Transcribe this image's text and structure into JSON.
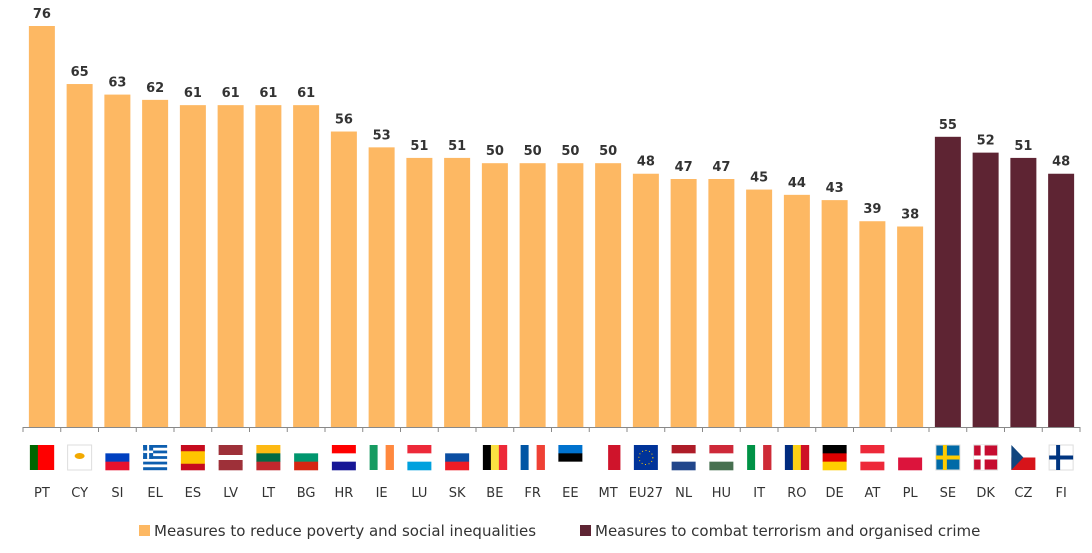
{
  "chart_data": {
    "type": "bar",
    "title": "",
    "xlabel": "",
    "ylabel": "",
    "ylim": [
      0,
      76
    ],
    "grid": false,
    "legend_position": "bottom",
    "categories": [
      "PT",
      "CY",
      "SI",
      "EL",
      "ES",
      "LV",
      "LT",
      "BG",
      "HR",
      "IE",
      "LU",
      "SK",
      "BE",
      "FR",
      "EE",
      "MT",
      "EU27",
      "NL",
      "HU",
      "IT",
      "RO",
      "DE",
      "AT",
      "PL",
      "SE",
      "DK",
      "CZ",
      "FI"
    ],
    "values": [
      76,
      65,
      63,
      62,
      61,
      61,
      61,
      61,
      56,
      53,
      51,
      51,
      50,
      50,
      50,
      50,
      48,
      47,
      47,
      45,
      44,
      43,
      39,
      38,
      55,
      52,
      51,
      48
    ],
    "series_of_category": [
      0,
      0,
      0,
      0,
      0,
      0,
      0,
      0,
      0,
      0,
      0,
      0,
      0,
      0,
      0,
      0,
      0,
      0,
      0,
      0,
      0,
      0,
      0,
      0,
      1,
      1,
      1,
      1
    ],
    "series": [
      {
        "name": "Measures to reduce poverty and social inequalities",
        "color": "#FDB863"
      },
      {
        "name": "Measures to combat terrorism and organised crime",
        "color": "#5E2433"
      }
    ]
  }
}
